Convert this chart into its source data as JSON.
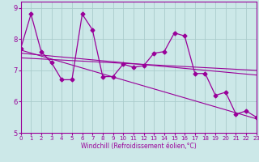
{
  "x": [
    0,
    1,
    2,
    3,
    4,
    5,
    6,
    7,
    8,
    9,
    10,
    11,
    12,
    13,
    14,
    15,
    16,
    17,
    18,
    19,
    20,
    21,
    22,
    23
  ],
  "y_main": [
    7.7,
    8.8,
    7.6,
    7.25,
    6.7,
    6.7,
    8.8,
    8.3,
    6.8,
    6.8,
    7.2,
    7.1,
    7.15,
    7.55,
    7.6,
    8.2,
    8.1,
    6.9,
    6.9,
    6.2,
    6.3,
    5.6,
    5.7,
    5.5
  ],
  "y_line1_x": [
    0,
    23
  ],
  "y_line1_y": [
    7.65,
    5.45
  ],
  "y_line2_x": [
    0,
    23
  ],
  "y_line2_y": [
    7.55,
    6.85
  ],
  "y_line3_x": [
    0,
    23
  ],
  "y_line3_y": [
    7.4,
    7.0
  ],
  "color": "#990099",
  "bg_color": "#cce8e8",
  "grid_color": "#aacccc",
  "xlabel": "Windchill (Refroidissement éolien,°C)",
  "xlim": [
    0,
    23
  ],
  "ylim": [
    5.0,
    9.2
  ],
  "yticks": [
    5,
    6,
    7,
    8,
    9
  ],
  "xticks": [
    0,
    1,
    2,
    3,
    4,
    5,
    6,
    7,
    8,
    9,
    10,
    11,
    12,
    13,
    14,
    15,
    16,
    17,
    18,
    19,
    20,
    21,
    22,
    23
  ]
}
